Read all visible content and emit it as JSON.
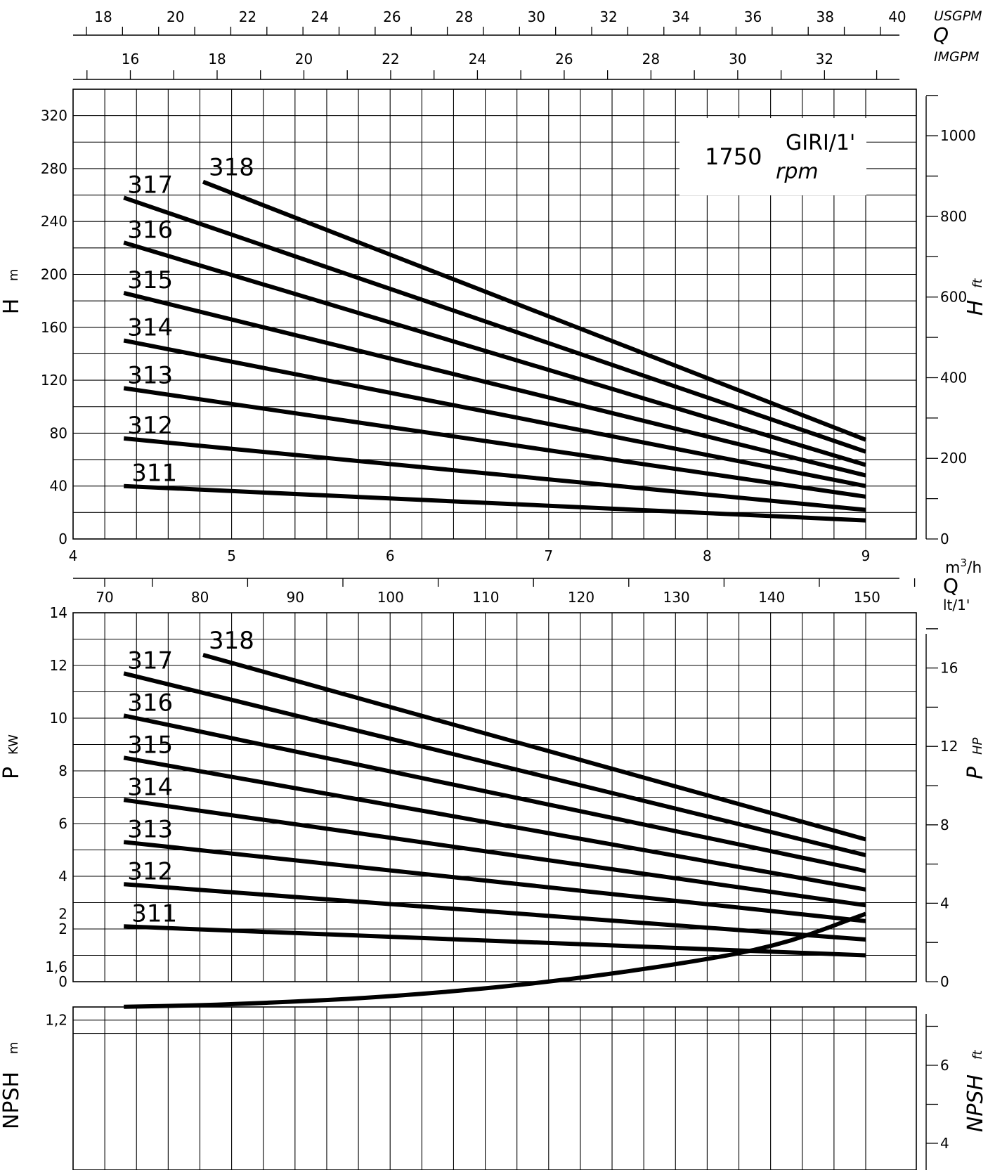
{
  "chart_data": [
    {
      "type": "line",
      "panel": "head",
      "ylabel": "H",
      "ylabel_unit": "m",
      "ylabel_right": "H",
      "ylabel_right_unit": "ft",
      "ylim": [
        0,
        340
      ],
      "yticks": [
        "0",
        "40",
        "80",
        "120",
        "160",
        "200",
        "240",
        "280",
        "320"
      ],
      "yticks_right": [
        "0",
        "200",
        "400",
        "600",
        "800",
        "1000"
      ],
      "speed_box": {
        "value": "1750",
        "line1": "GIRI/1'",
        "line2": "rpm"
      },
      "series": [
        {
          "name": "311",
          "x": [
            4.32,
            9.0
          ],
          "y": [
            40,
            14
          ]
        },
        {
          "name": "312",
          "x": [
            4.32,
            9.0
          ],
          "y": [
            76,
            22
          ]
        },
        {
          "name": "313",
          "x": [
            4.32,
            9.0
          ],
          "y": [
            114,
            32
          ]
        },
        {
          "name": "314",
          "x": [
            4.32,
            9.0
          ],
          "y": [
            150,
            40
          ]
        },
        {
          "name": "315",
          "x": [
            4.32,
            9.0
          ],
          "y": [
            186,
            48
          ]
        },
        {
          "name": "316",
          "x": [
            4.32,
            9.0
          ],
          "y": [
            224,
            56
          ]
        },
        {
          "name": "317",
          "x": [
            4.32,
            9.0
          ],
          "y": [
            258,
            66
          ]
        },
        {
          "name": "318",
          "x": [
            4.82,
            9.0
          ],
          "y": [
            270,
            75
          ]
        }
      ]
    },
    {
      "type": "line",
      "panel": "power",
      "ylabel": "P",
      "ylabel_unit": "KW",
      "ylabel_right": "P",
      "ylabel_right_unit": "HP",
      "ylim": [
        0,
        14
      ],
      "yticks": [
        "0",
        "2",
        "4",
        "6",
        "8",
        "10",
        "12",
        "14"
      ],
      "yticks_right": [
        "0",
        "4",
        "8",
        "12",
        "16"
      ],
      "series": [
        {
          "name": "311",
          "x": [
            4.32,
            9.0
          ],
          "y": [
            2.1,
            1.0
          ]
        },
        {
          "name": "312",
          "x": [
            4.32,
            9.0
          ],
          "y": [
            3.7,
            1.6
          ]
        },
        {
          "name": "313",
          "x": [
            4.32,
            9.0
          ],
          "y": [
            5.3,
            2.3
          ]
        },
        {
          "name": "314",
          "x": [
            4.32,
            9.0
          ],
          "y": [
            6.9,
            2.9
          ]
        },
        {
          "name": "315",
          "x": [
            4.32,
            9.0
          ],
          "y": [
            8.5,
            3.5
          ]
        },
        {
          "name": "316",
          "x": [
            4.32,
            9.0
          ],
          "y": [
            10.1,
            4.2
          ]
        },
        {
          "name": "317",
          "x": [
            4.32,
            9.0
          ],
          "y": [
            11.7,
            4.8
          ]
        },
        {
          "name": "318",
          "x": [
            4.82,
            9.0
          ],
          "y": [
            12.4,
            5.4
          ]
        }
      ]
    },
    {
      "type": "line",
      "panel": "npsh",
      "ylabel": "NPSH",
      "ylabel_unit": "m",
      "ylabel_right": "NPSH",
      "ylabel_right_unit": "ft",
      "yticks": [
        "1,2",
        "1,6",
        "2"
      ],
      "yticks_right": [
        "4",
        "6"
      ],
      "series": [
        {
          "x": [
            4.32,
            5.0,
            6.0,
            7.0,
            8.0,
            8.5,
            9.0
          ],
          "y": [
            1.3,
            1.32,
            1.38,
            1.49,
            1.66,
            1.79,
            2.0
          ]
        }
      ]
    }
  ],
  "axes": {
    "flow_m3h": {
      "ticks": [
        "4",
        "5",
        "6",
        "7",
        "8",
        "9"
      ],
      "unit_top": "m",
      "unit_sup": "3",
      "unit_rest": "/h"
    },
    "flow_usgpm": {
      "ticks": [
        "18",
        "20",
        "22",
        "24",
        "26",
        "28",
        "30",
        "32",
        "34",
        "36",
        "38",
        "40"
      ],
      "unit": "USGPM"
    },
    "flow_imgpm": {
      "ticks": [
        "16",
        "18",
        "20",
        "22",
        "24",
        "26",
        "28",
        "30",
        "32"
      ],
      "unit": "IMGPM"
    },
    "flow_lmin": {
      "ticks": [
        "70",
        "80",
        "90",
        "100",
        "110",
        "120",
        "130",
        "140",
        "150"
      ],
      "unit": "lt/1'"
    },
    "q_symbol": "Q"
  }
}
